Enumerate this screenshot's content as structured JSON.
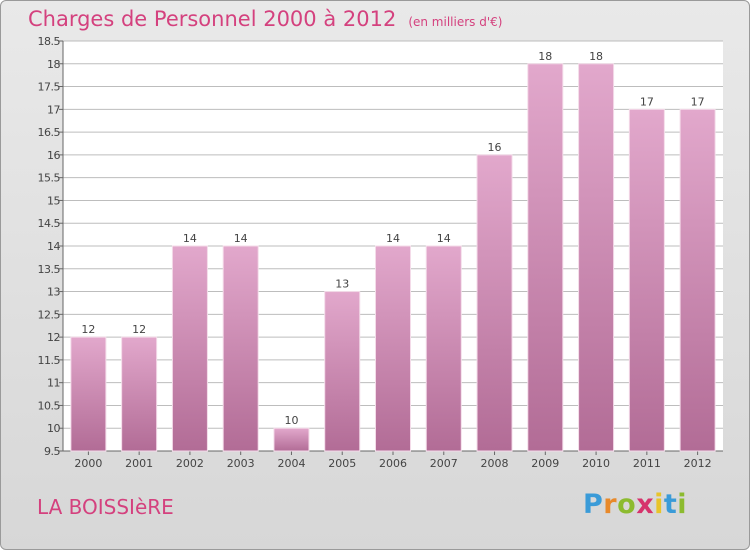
{
  "header": {
    "title": "Charges de Personnel 2000 à 2012",
    "unit": "(en milliers d'€)"
  },
  "footer": {
    "location": "LA BOISSIèRE",
    "logo_letters": [
      {
        "ch": "P",
        "color": "#3a9bd8"
      },
      {
        "ch": "r",
        "color": "#e8892a"
      },
      {
        "ch": "o",
        "color": "#8cbb2f"
      },
      {
        "ch": "x",
        "color": "#d6336c"
      },
      {
        "ch": "i",
        "color": "#e8c42a"
      },
      {
        "ch": "t",
        "color": "#3a9bd8"
      },
      {
        "ch": "i",
        "color": "#8cbb2f"
      }
    ]
  },
  "colors": {
    "title": "#d4417e",
    "bar_top": "#e2a8cc",
    "bar_bottom": "#b26c96",
    "grid": "#bdbdbd",
    "plot_bg": "#ffffff"
  },
  "chart_data": {
    "type": "bar",
    "categories": [
      "2000",
      "2001",
      "2002",
      "2003",
      "2004",
      "2005",
      "2006",
      "2007",
      "2008",
      "2009",
      "2010",
      "2011",
      "2012"
    ],
    "values": [
      12,
      12,
      14,
      14,
      10,
      13,
      14,
      14,
      16,
      18,
      18,
      17,
      17
    ],
    "data_labels": [
      "12",
      "12",
      "14",
      "14",
      "10",
      "13",
      "14",
      "14",
      "16",
      "18",
      "18",
      "17",
      "17"
    ],
    "ylim": [
      9.5,
      18.5
    ],
    "yticks": [
      9.5,
      10,
      10.5,
      11,
      11.5,
      12,
      12.5,
      13,
      13.5,
      14,
      14.5,
      15,
      15.5,
      16,
      16.5,
      17,
      17.5,
      18,
      18.5
    ],
    "ytick_labels": [
      "9.5",
      "10",
      "10.5",
      "11",
      "11.5",
      "12",
      "12.5",
      "13",
      "13.5",
      "14",
      "14.5",
      "15",
      "15.5",
      "16",
      "16.5",
      "17",
      "17.5",
      "18",
      "18.5"
    ],
    "grid": true,
    "title": "Charges de Personnel 2000 à 2012",
    "xlabel": "",
    "ylabel": ""
  }
}
